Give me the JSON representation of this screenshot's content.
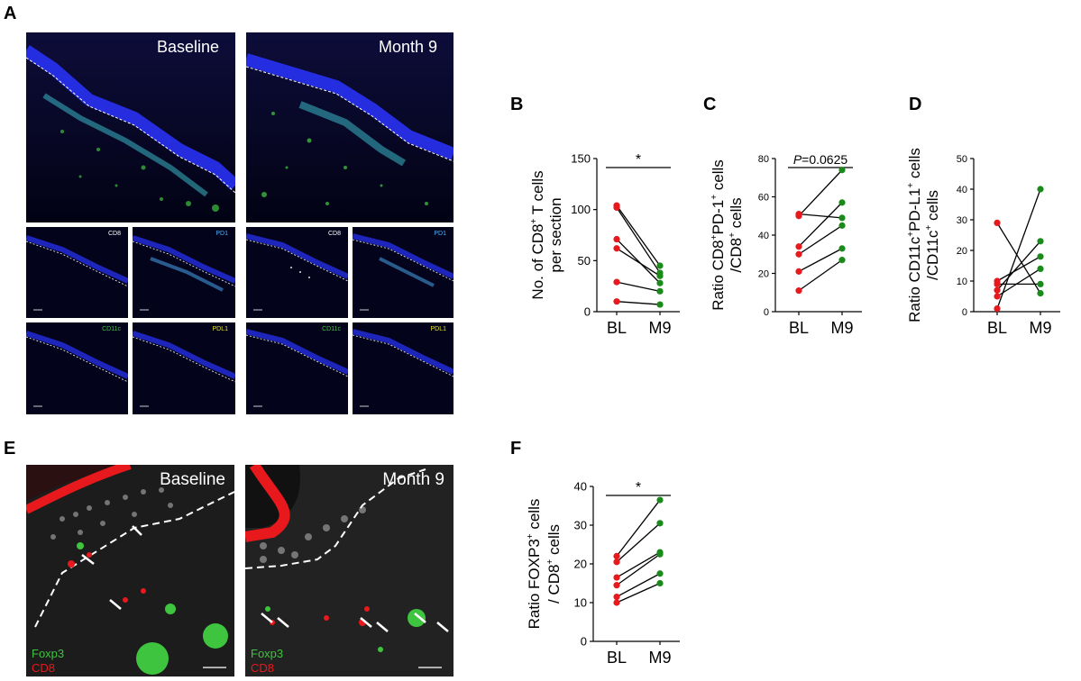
{
  "panels": {
    "A": {
      "letter": "A",
      "baseline": "Baseline",
      "month9": "Month 9",
      "channels": [
        "CD8",
        "PD1",
        "CD11c",
        "PDL1"
      ]
    },
    "B": {
      "letter": "B"
    },
    "C": {
      "letter": "C"
    },
    "D": {
      "letter": "D"
    },
    "E": {
      "letter": "E",
      "baseline": "Baseline",
      "month9": "Month 9",
      "legend_green": "Foxp3",
      "legend_red": "CD8"
    },
    "F": {
      "letter": "F"
    }
  },
  "colors": {
    "bl": "#e8191c",
    "m9": "#1a8a1a",
    "cd8": "#e8e8e8",
    "pd1": "#4fb3ff",
    "cd11c": "#3ec43e",
    "pdl1": "#e6e62a"
  },
  "chart_data": [
    {
      "id": "B",
      "type": "scatter",
      "ylabel_line1": "No. of CD8",
      "ylabel_sup1": "+",
      "ylabel_line1_end": " T cells",
      "ylabel_line2": "per section",
      "categories": [
        "BL",
        "M9"
      ],
      "ylim": [
        0,
        150
      ],
      "yticks": [
        0,
        50,
        100,
        150
      ],
      "annotation": "*",
      "pairs": [
        [
          104,
          45
        ],
        [
          102,
          38
        ],
        [
          71,
          28
        ],
        [
          62,
          35
        ],
        [
          29,
          20
        ],
        [
          10,
          7
        ]
      ]
    },
    {
      "id": "C",
      "type": "scatter",
      "ylabel_line1": "Ratio CD8",
      "ylabel_sup1": "+",
      "ylabel_line1_end": "PD-1",
      "ylabel_sup1b": "+",
      "ylabel_line1_end2": " cells",
      "ylabel_line2": "/CD8",
      "ylabel_sup2": "+",
      "ylabel_line2_end": " cells",
      "categories": [
        "BL",
        "M9"
      ],
      "ylim": [
        0,
        80
      ],
      "yticks": [
        0,
        20,
        40,
        60,
        80
      ],
      "annotation_italic": "P",
      "annotation_rest": "=0.0625",
      "pairs": [
        [
          51,
          49
        ],
        [
          50,
          74
        ],
        [
          34,
          57
        ],
        [
          30,
          45
        ],
        [
          21,
          33
        ],
        [
          11,
          27
        ]
      ]
    },
    {
      "id": "D",
      "type": "scatter",
      "ylabel_line1": "Ratio CD11c",
      "ylabel_sup1": "+",
      "ylabel_line1_end": "PD-L1",
      "ylabel_sup1b": "+",
      "ylabel_line1_end2": " cells",
      "ylabel_line2": "/CD11c",
      "ylabel_sup2": "+",
      "ylabel_line2_end": " cells",
      "categories": [
        "BL",
        "M9"
      ],
      "ylim": [
        0,
        50
      ],
      "yticks": [
        0,
        10,
        20,
        30,
        40,
        50
      ],
      "pairs": [
        [
          29,
          6
        ],
        [
          10,
          18
        ],
        [
          9,
          9
        ],
        [
          7,
          23
        ],
        [
          5,
          14
        ],
        [
          1,
          40
        ]
      ]
    },
    {
      "id": "F",
      "type": "scatter",
      "ylabel_line1": "Ratio FOXP3",
      "ylabel_sup1": "+",
      "ylabel_line1_end": " cells",
      "ylabel_line2": "/ CD8",
      "ylabel_sup2": "+",
      "ylabel_line2_end": " cells",
      "categories": [
        "BL",
        "M9"
      ],
      "ylim": [
        0,
        40
      ],
      "yticks": [
        0,
        10,
        20,
        30,
        40
      ],
      "annotation": "*",
      "pairs": [
        [
          22,
          36.5
        ],
        [
          20.5,
          30.5
        ],
        [
          16.5,
          23
        ],
        [
          14.5,
          22.5
        ],
        [
          11.5,
          17.5
        ],
        [
          10,
          15
        ]
      ]
    }
  ]
}
